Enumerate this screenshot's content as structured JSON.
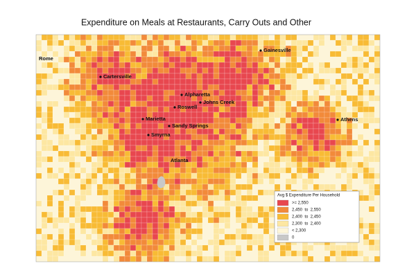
{
  "title": "Expenditure on Meals at Restaurants, Carry Outs and Other",
  "cities": [
    "Rome",
    "Gainesville",
    "Cartersville",
    "Alpharetta",
    "Johns Creek",
    "Roswell",
    "Marietta",
    "Sandy Springs",
    "Athens",
    "Smyrna",
    "Atlanta"
  ],
  "legend": {
    "title": "Avg $ Expenditure Per Household",
    "items": [
      {
        "label": ">= 2,550",
        "color": "#e8474f"
      },
      {
        "label": "2,450  to  2,550",
        "color": "#f28a3a"
      },
      {
        "label": "2,400  to  2,450",
        "color": "#f8bb35"
      },
      {
        "label": "2,300  to  2,400",
        "color": "#fde7a2"
      },
      {
        "label": "< 2,300",
        "color": "#fdf5d9"
      },
      {
        "label": "0",
        "color": "#c8c8c8"
      }
    ]
  }
}
